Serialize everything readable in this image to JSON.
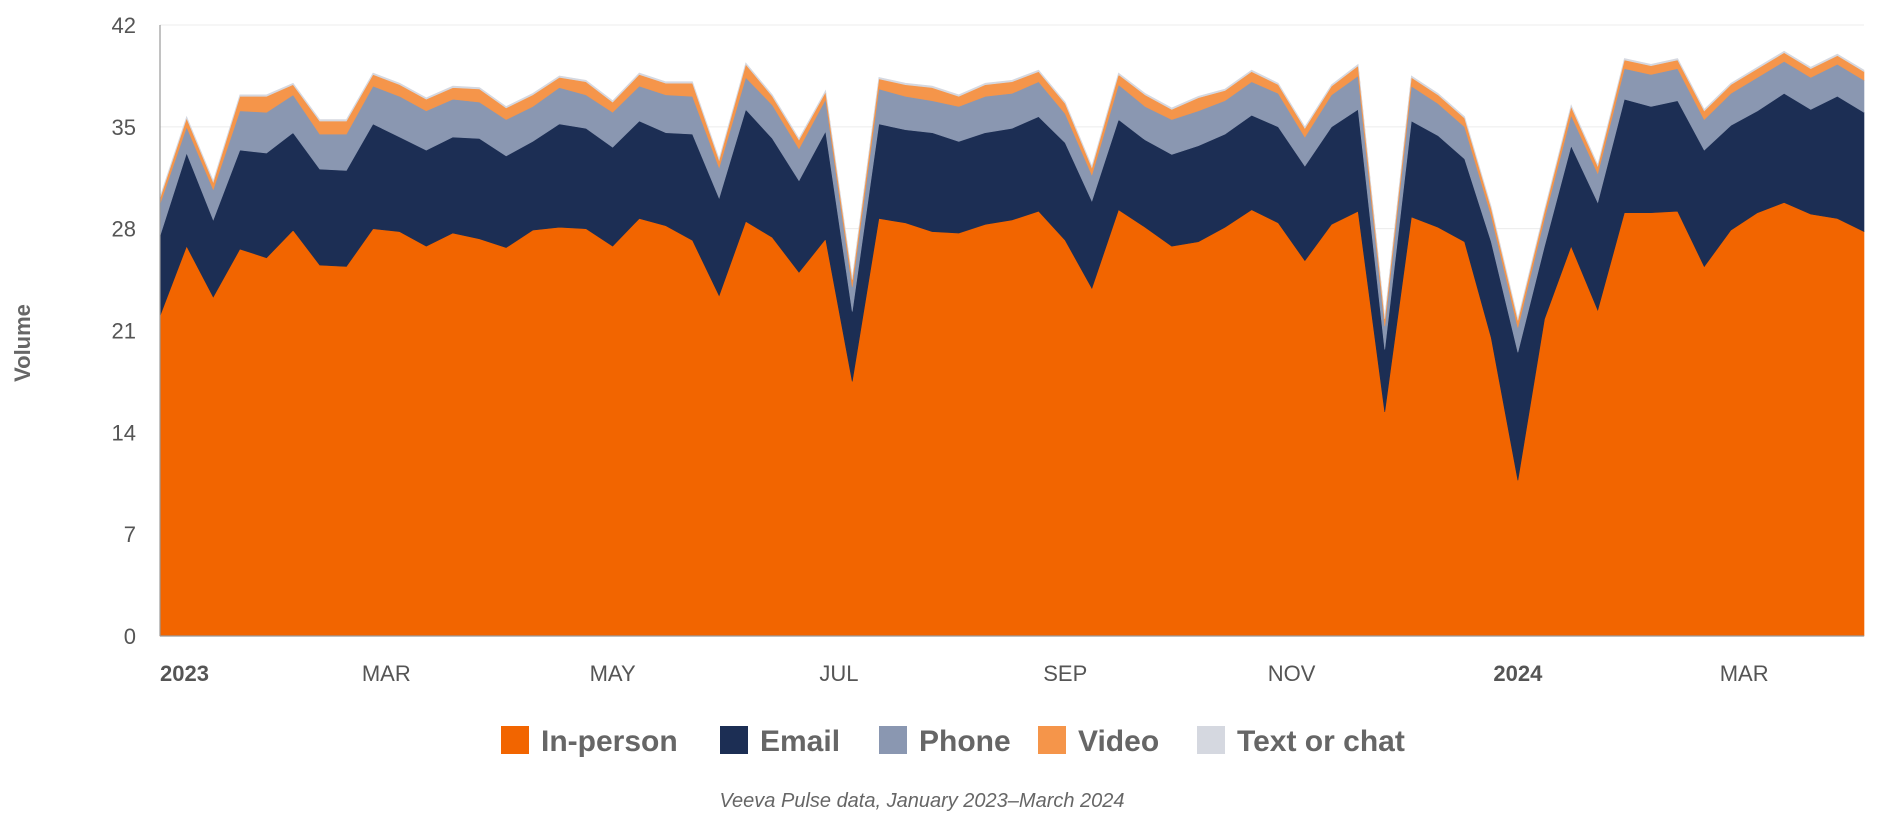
{
  "chart_data": {
    "type": "area",
    "stacked": true,
    "ylabel": "Volume",
    "xlabel": "",
    "ylim": [
      0,
      42
    ],
    "yticks": [
      0,
      7,
      14,
      21,
      28,
      35,
      42
    ],
    "caption": "Veeva Pulse data, January 2023–March 2024",
    "legend_position": "bottom",
    "x_start_week": 1,
    "x_end_week": 65,
    "x_ticks": [
      {
        "week": 1,
        "label": "2023",
        "bold": true
      },
      {
        "week": 9.5,
        "label": "MAR",
        "bold": false
      },
      {
        "week": 18,
        "label": "MAY",
        "bold": false
      },
      {
        "week": 26.5,
        "label": "JUL",
        "bold": false
      },
      {
        "week": 35,
        "label": "SEP",
        "bold": false
      },
      {
        "week": 43.5,
        "label": "NOV",
        "bold": false
      },
      {
        "week": 52,
        "label": "2024",
        "bold": true
      },
      {
        "week": 60.5,
        "label": "MAR",
        "bold": false
      }
    ],
    "series": [
      {
        "name": "In-person",
        "color": "#f26500",
        "values": [
          22.0,
          26.8,
          23.3,
          26.6,
          26.0,
          27.9,
          25.5,
          25.4,
          28.0,
          27.8,
          26.8,
          27.7,
          27.3,
          26.7,
          27.9,
          28.1,
          28.0,
          26.8,
          28.7,
          28.2,
          27.2,
          23.4,
          28.5,
          27.4,
          25.0,
          27.3,
          17.5,
          28.7,
          28.4,
          27.8,
          27.7,
          28.3,
          28.6,
          29.2,
          27.2,
          23.9,
          29.3,
          28.1,
          26.8,
          27.1,
          28.1,
          29.3,
          28.4,
          25.8,
          28.3,
          29.2,
          15.4,
          28.8,
          28.1,
          27.1,
          20.5,
          10.7,
          21.8,
          26.8,
          22.4,
          29.1,
          29.1,
          29.2,
          25.4,
          27.9,
          29.1,
          29.8,
          29.0,
          28.7,
          27.8
        ]
      },
      {
        "name": "Email",
        "color": "#1c2e54",
        "values": [
          5.5,
          6.4,
          5.3,
          6.8,
          7.2,
          6.7,
          6.6,
          6.6,
          7.2,
          6.5,
          6.6,
          6.6,
          6.9,
          6.3,
          6.1,
          7.1,
          6.9,
          6.8,
          6.7,
          6.4,
          7.3,
          6.7,
          7.7,
          6.8,
          6.3,
          7.4,
          4.8,
          6.5,
          6.4,
          6.8,
          6.3,
          6.3,
          6.3,
          6.5,
          6.7,
          6.0,
          6.2,
          6.0,
          6.3,
          6.6,
          6.4,
          6.5,
          6.6,
          6.5,
          6.7,
          7.0,
          4.3,
          6.6,
          6.3,
          5.7,
          6.6,
          8.8,
          5.0,
          6.9,
          7.4,
          7.8,
          7.3,
          7.6,
          8.0,
          7.2,
          7.0,
          7.5,
          7.2,
          8.4,
          8.2
        ]
      },
      {
        "name": "Phone",
        "color": "#8a97b1",
        "values": [
          2.2,
          1.8,
          2.1,
          2.7,
          2.8,
          2.6,
          2.4,
          2.5,
          2.6,
          2.8,
          2.7,
          2.6,
          2.5,
          2.5,
          2.4,
          2.5,
          2.3,
          2.4,
          2.4,
          2.6,
          2.6,
          2.1,
          2.2,
          2.3,
          2.2,
          2.2,
          1.7,
          2.4,
          2.3,
          2.2,
          2.4,
          2.5,
          2.4,
          2.4,
          2.0,
          1.8,
          2.4,
          2.3,
          2.4,
          2.4,
          2.3,
          2.3,
          2.3,
          2.0,
          2.2,
          2.3,
          1.6,
          2.4,
          2.2,
          2.2,
          1.8,
          1.7,
          1.9,
          2.1,
          2.0,
          2.1,
          2.2,
          2.2,
          2.1,
          2.2,
          2.3,
          2.2,
          2.2,
          2.2,
          2.2
        ]
      },
      {
        "name": "Video",
        "color": "#f5954a",
        "values": [
          0.4,
          0.6,
          0.5,
          1.0,
          1.1,
          0.7,
          0.9,
          0.9,
          0.8,
          0.8,
          0.8,
          0.8,
          0.9,
          0.8,
          0.8,
          0.7,
          0.9,
          0.7,
          0.8,
          0.8,
          0.9,
          0.5,
          0.9,
          0.6,
          0.6,
          0.5,
          0.5,
          0.7,
          0.8,
          0.9,
          0.7,
          0.8,
          0.8,
          0.7,
          0.7,
          0.5,
          0.7,
          0.8,
          0.7,
          0.9,
          0.7,
          0.7,
          0.6,
          0.6,
          0.6,
          0.7,
          0.5,
          0.6,
          0.6,
          0.6,
          0.5,
          0.5,
          0.5,
          0.6,
          0.5,
          0.6,
          0.6,
          0.6,
          0.6,
          0.6,
          0.6,
          0.6,
          0.6,
          0.6,
          0.6
        ]
      },
      {
        "name": "Text or chat",
        "color": "#d5d8e0",
        "values": [
          0.1,
          0.1,
          0.1,
          0.1,
          0.1,
          0.1,
          0.1,
          0.1,
          0.1,
          0.1,
          0.1,
          0.1,
          0.1,
          0.1,
          0.1,
          0.1,
          0.1,
          0.1,
          0.1,
          0.1,
          0.1,
          0.1,
          0.1,
          0.1,
          0.1,
          0.1,
          0.1,
          0.1,
          0.1,
          0.1,
          0.1,
          0.1,
          0.1,
          0.1,
          0.1,
          0.1,
          0.1,
          0.1,
          0.1,
          0.1,
          0.1,
          0.1,
          0.1,
          0.1,
          0.1,
          0.1,
          0.1,
          0.1,
          0.1,
          0.1,
          0.1,
          0.1,
          0.1,
          0.1,
          0.1,
          0.1,
          0.1,
          0.1,
          0.1,
          0.1,
          0.1,
          0.1,
          0.1,
          0.1,
          0.1
        ]
      }
    ]
  }
}
